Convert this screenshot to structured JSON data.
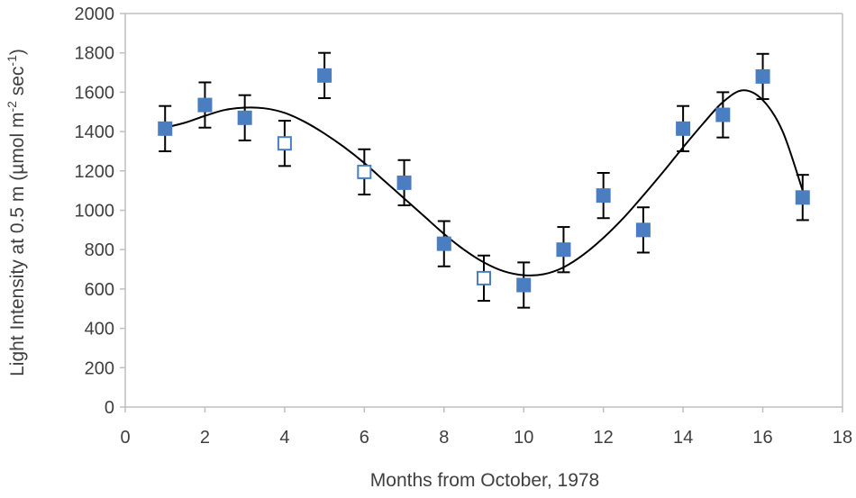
{
  "chart_data": {
    "type": "scatter",
    "xlabel": "Months from October, 1978",
    "ylabel": "Light Intensity at 0.5 m (µmol m-2 sec-1)",
    "ylabel_parts": {
      "prefix": "Light Intensity at 0.5 m (µmol m",
      "sup1": "-2",
      "middle": " sec",
      "sup2": "-1",
      "suffix": ")"
    },
    "xlim": [
      0,
      18
    ],
    "ylim": [
      0,
      2000
    ],
    "xticks": [
      "0",
      "2",
      "4",
      "6",
      "8",
      "10",
      "12",
      "14",
      "16",
      "18"
    ],
    "yticks": [
      "0",
      "200",
      "400",
      "600",
      "800",
      "1000",
      "1200",
      "1400",
      "1600",
      "1800",
      "2000"
    ],
    "grid": false,
    "legend": "none",
    "colors": {
      "filled_marker": "#4a7ec0",
      "open_marker": "#4a7ec0",
      "error_bar": "#000000",
      "trend_line": "#000000",
      "axis": "#bfbfbf"
    },
    "series": [
      {
        "marker": "filled-square",
        "points": [
          {
            "x": 1,
            "y": 1415,
            "err": 115
          },
          {
            "x": 2,
            "y": 1535,
            "err": 115
          },
          {
            "x": 3,
            "y": 1470,
            "err": 115
          },
          {
            "x": 5,
            "y": 1685,
            "err": 115
          },
          {
            "x": 7,
            "y": 1140,
            "err": 115
          },
          {
            "x": 8,
            "y": 830,
            "err": 115
          },
          {
            "x": 10,
            "y": 620,
            "err": 115
          },
          {
            "x": 11,
            "y": 800,
            "err": 115
          },
          {
            "x": 12,
            "y": 1075,
            "err": 115
          },
          {
            "x": 13,
            "y": 900,
            "err": 115
          },
          {
            "x": 14,
            "y": 1415,
            "err": 115
          },
          {
            "x": 15,
            "y": 1485,
            "err": 115
          },
          {
            "x": 16,
            "y": 1680,
            "err": 115
          },
          {
            "x": 17,
            "y": 1065,
            "err": 115
          }
        ]
      },
      {
        "marker": "open-square",
        "points": [
          {
            "x": 4,
            "y": 1340,
            "err": 115
          },
          {
            "x": 6,
            "y": 1195,
            "err": 115
          },
          {
            "x": 9,
            "y": 655,
            "err": 115
          }
        ]
      }
    ],
    "trend_line": {
      "type": "polynomial",
      "points": [
        [
          1.0,
          1420
        ],
        [
          1.5,
          1445
        ],
        [
          2.0,
          1480
        ],
        [
          2.5,
          1510
        ],
        [
          3.0,
          1522
        ],
        [
          3.5,
          1518
        ],
        [
          4.0,
          1495
        ],
        [
          4.5,
          1450
        ],
        [
          5.0,
          1390
        ],
        [
          5.5,
          1320
        ],
        [
          6.0,
          1240
        ],
        [
          6.5,
          1150
        ],
        [
          7.0,
          1060
        ],
        [
          7.5,
          970
        ],
        [
          8.0,
          880
        ],
        [
          8.5,
          800
        ],
        [
          9.0,
          735
        ],
        [
          9.5,
          690
        ],
        [
          10.0,
          670
        ],
        [
          10.5,
          675
        ],
        [
          11.0,
          710
        ],
        [
          11.5,
          775
        ],
        [
          12.0,
          860
        ],
        [
          12.5,
          960
        ],
        [
          13.0,
          1075
        ],
        [
          13.5,
          1195
        ],
        [
          14.0,
          1320
        ],
        [
          14.5,
          1440
        ],
        [
          15.0,
          1550
        ],
        [
          15.5,
          1610
        ],
        [
          16.0,
          1560
        ],
        [
          16.5,
          1400
        ],
        [
          17.0,
          1100
        ]
      ]
    }
  }
}
